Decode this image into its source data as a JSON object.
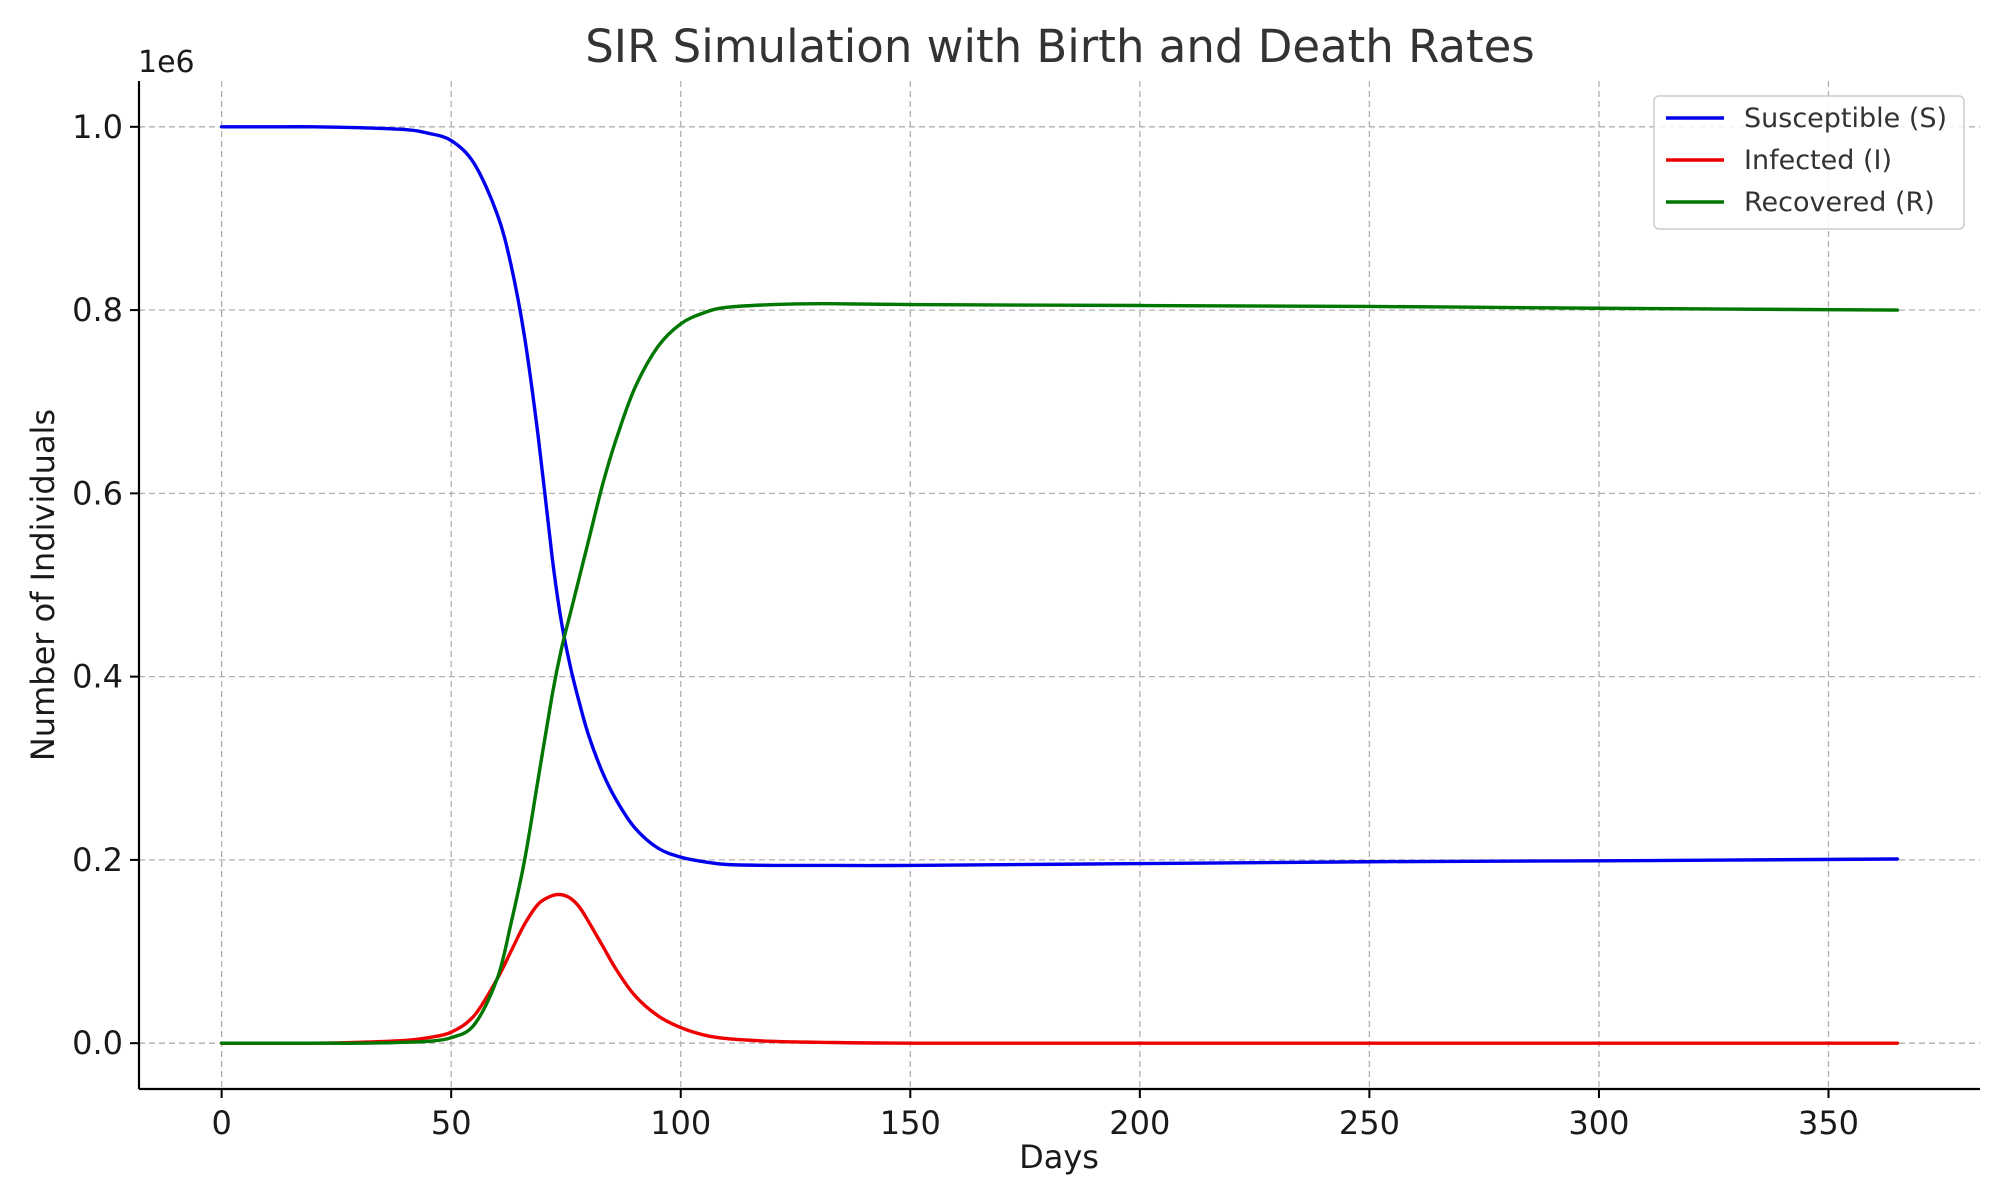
{
  "chart_data": {
    "type": "line",
    "title": "SIR Simulation with Birth and Death Rates",
    "xlabel": "Days",
    "ylabel": "Number of Individuals",
    "y_offset_label": "1e6",
    "xlim": [
      -18,
      383
    ],
    "ylim": [
      -0.05,
      1.05
    ],
    "x_ticks": [
      0,
      50,
      100,
      150,
      200,
      250,
      300,
      350
    ],
    "y_ticks": [
      0.0,
      0.2,
      0.4,
      0.6,
      0.8,
      1.0
    ],
    "x_tick_labels": [
      "0",
      "50",
      "100",
      "150",
      "200",
      "250",
      "300",
      "350"
    ],
    "y_tick_labels": [
      "0.0",
      "0.2",
      "0.4",
      "0.6",
      "0.8",
      "1.0"
    ],
    "grid": true,
    "legend_position": "top-right",
    "x": [
      0,
      10,
      20,
      30,
      40,
      45,
      50,
      55,
      60,
      63,
      66,
      69,
      72,
      74,
      76,
      78,
      80,
      83,
      86,
      90,
      95,
      100,
      105,
      110,
      120,
      130,
      150,
      200,
      250,
      300,
      365
    ],
    "series": [
      {
        "name": "Susceptible (S)",
        "color": "#0000ee",
        "values": [
          1.0,
          1.0,
          1.0,
          0.999,
          0.997,
          0.993,
          0.985,
          0.96,
          0.905,
          0.85,
          0.77,
          0.66,
          0.53,
          0.46,
          0.41,
          0.37,
          0.335,
          0.295,
          0.265,
          0.235,
          0.213,
          0.203,
          0.198,
          0.195,
          0.194,
          0.194,
          0.194,
          0.196,
          0.198,
          0.199,
          0.201
        ]
      },
      {
        "name": "Infected (I)",
        "color": "#ee0000",
        "values": [
          0.0,
          0.0,
          0.0,
          0.001,
          0.003,
          0.006,
          0.012,
          0.03,
          0.07,
          0.1,
          0.13,
          0.152,
          0.161,
          0.162,
          0.158,
          0.148,
          0.132,
          0.106,
          0.08,
          0.052,
          0.03,
          0.017,
          0.009,
          0.005,
          0.002,
          0.001,
          0.0,
          0.0,
          0.0,
          0.0,
          0.0
        ]
      },
      {
        "name": "Recovered (R)",
        "color": "#007700",
        "values": [
          0.0,
          0.0,
          0.0,
          0.0,
          0.001,
          0.002,
          0.006,
          0.02,
          0.07,
          0.13,
          0.2,
          0.29,
          0.38,
          0.43,
          0.47,
          0.51,
          0.55,
          0.61,
          0.66,
          0.715,
          0.76,
          0.785,
          0.797,
          0.803,
          0.806,
          0.807,
          0.806,
          0.805,
          0.804,
          0.802,
          0.8
        ]
      }
    ]
  }
}
